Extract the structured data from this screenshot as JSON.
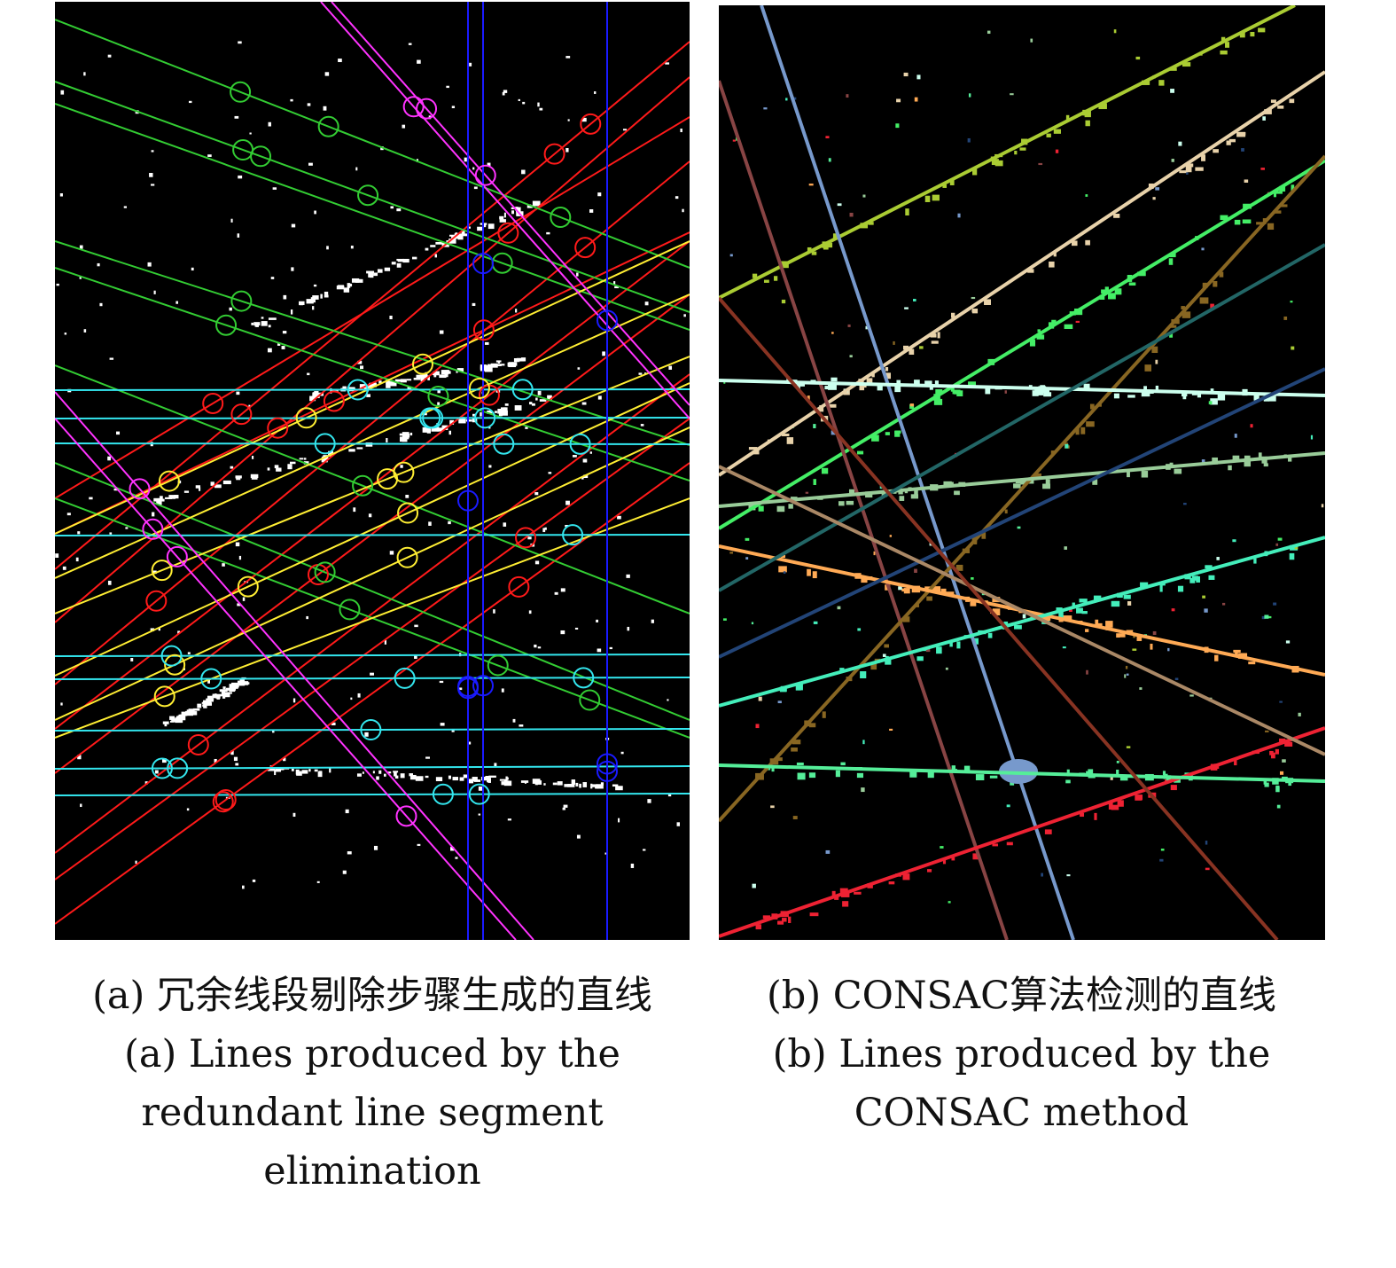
{
  "panels": [
    {
      "id": "a",
      "caption_zh": "(a) 冗余线段剔除步骤生成的直线",
      "caption_en": "(a) Lines produced by the redundant line segment elimination"
    },
    {
      "id": "b",
      "caption_zh": "(b) CONSAC算法检测的直线",
      "caption_en": "(b) Lines produced by the CONSAC method"
    }
  ],
  "colors": {
    "background": "#000000",
    "points": "#ffffff",
    "panel_a_lines": {
      "red": "#ff1a1a",
      "green": "#33cc33",
      "yellow": "#ffee33",
      "cyan": "#33e6ee",
      "magenta": "#ff33ff",
      "blue": "#1a1aff"
    },
    "panel_b_lines": [
      "#aacc33",
      "#e8d2aa",
      "#44ee66",
      "#7799cc",
      "#884444",
      "#886622",
      "#ffaa55",
      "#ee2233",
      "#44eebb",
      "#55ee99",
      "#ccffee",
      "#99cc99",
      "#224477"
    ]
  }
}
